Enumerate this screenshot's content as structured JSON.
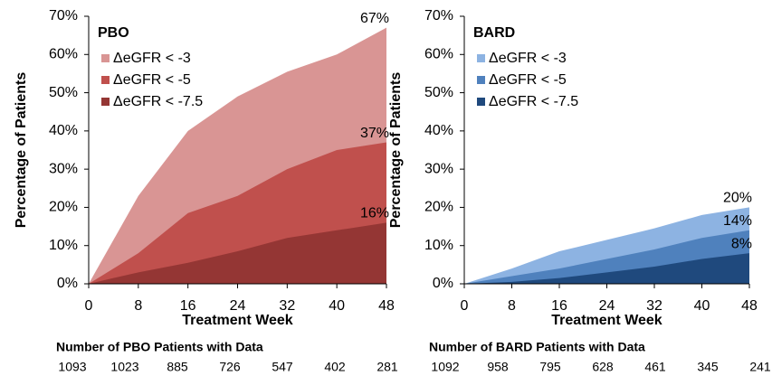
{
  "chart_data": [
    {
      "type": "area",
      "legend_title": "PBO",
      "y_label": "Percentage of Patients",
      "x_label": "Treatment Week",
      "x": [
        0,
        8,
        16,
        24,
        32,
        40,
        48
      ],
      "series": [
        {
          "name": "ΔeGFR < -3",
          "color": "#d99594",
          "values": [
            0,
            23,
            40,
            49,
            55.5,
            60,
            67
          ],
          "value_labels": [
            null,
            null,
            null,
            null,
            null,
            null,
            "67%"
          ]
        },
        {
          "name": "ΔeGFR < -5",
          "color": "#c0504d",
          "values": [
            0,
            8,
            18.5,
            23,
            30,
            35,
            37
          ],
          "value_labels": [
            null,
            null,
            null,
            null,
            null,
            null,
            "37%"
          ]
        },
        {
          "name": "ΔeGFR < -7.5",
          "color": "#943634",
          "values": [
            0,
            3,
            5.5,
            8.5,
            12,
            14,
            16
          ],
          "value_labels": [
            null,
            null,
            null,
            null,
            null,
            null,
            "16%"
          ]
        }
      ],
      "xlim": [
        0,
        48
      ],
      "xticks": [
        0,
        8,
        16,
        24,
        32,
        40,
        48
      ],
      "ylim": [
        0,
        70
      ],
      "yticks": [
        {
          "value": 0,
          "label": "0%"
        },
        {
          "value": 10,
          "label": "10%"
        },
        {
          "value": 20,
          "label": "20%"
        },
        {
          "value": 30,
          "label": "30%"
        },
        {
          "value": 40,
          "label": "40%"
        },
        {
          "value": 50,
          "label": "50%"
        },
        {
          "value": 60,
          "label": "60%"
        },
        {
          "value": 70,
          "label": "70%"
        }
      ],
      "table_title": "Number of PBO Patients with Data",
      "patient_counts": [
        "1093",
        "1023",
        "885",
        "726",
        "547",
        "402",
        "281"
      ]
    },
    {
      "type": "area",
      "legend_title": "BARD",
      "y_label": "Percentage of Patients",
      "x_label": "Treatment Week",
      "x": [
        0,
        8,
        16,
        24,
        32,
        40,
        48
      ],
      "series": [
        {
          "name": "ΔeGFR < -3",
          "color": "#8db3e2",
          "values": [
            0,
            4,
            8.5,
            11.5,
            14.5,
            18,
            20
          ],
          "value_labels": [
            null,
            null,
            null,
            null,
            null,
            null,
            "20%"
          ]
        },
        {
          "name": "ΔeGFR < -5",
          "color": "#4f81bd",
          "values": [
            0,
            2,
            4,
            6.5,
            9,
            12,
            14
          ],
          "value_labels": [
            null,
            null,
            null,
            null,
            null,
            null,
            "14%"
          ]
        },
        {
          "name": "ΔeGFR < -7.5",
          "color": "#1f497d",
          "values": [
            0,
            0.5,
            1.5,
            3,
            4.5,
            6.5,
            8
          ],
          "value_labels": [
            null,
            null,
            null,
            null,
            null,
            null,
            "8%"
          ]
        }
      ],
      "xlim": [
        0,
        48
      ],
      "xticks": [
        0,
        8,
        16,
        24,
        32,
        40,
        48
      ],
      "ylim": [
        0,
        70
      ],
      "yticks": [
        {
          "value": 0,
          "label": "0%"
        },
        {
          "value": 10,
          "label": "10%"
        },
        {
          "value": 20,
          "label": "20%"
        },
        {
          "value": 30,
          "label": "30%"
        },
        {
          "value": 40,
          "label": "40%"
        },
        {
          "value": 50,
          "label": "50%"
        },
        {
          "value": 60,
          "label": "60%"
        },
        {
          "value": 70,
          "label": "70%"
        }
      ],
      "table_title": "Number of BARD Patients with Data",
      "patient_counts": [
        "1092",
        "958",
        "795",
        "628",
        "461",
        "345",
        "241"
      ]
    }
  ]
}
